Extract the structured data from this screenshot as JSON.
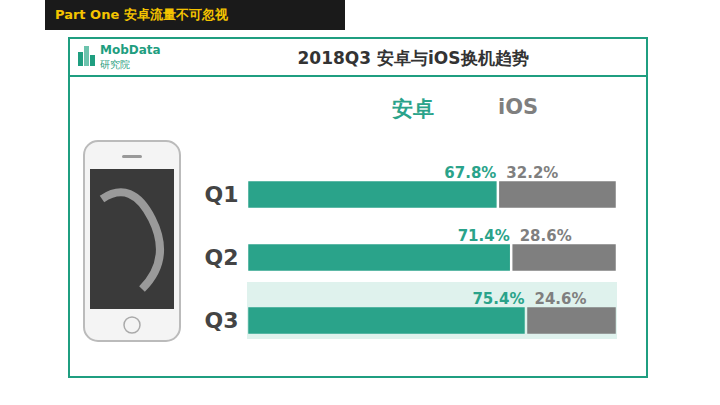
{
  "header": "Part One 安卓流量不可忽视",
  "chart_data": {
    "type": "bar",
    "title": "2018Q3 安卓与iOS换机趋势",
    "logo": {
      "name": "MobData",
      "subname": "研究院"
    },
    "orientation": "horizontal",
    "stacked": true,
    "categories": [
      "Q1",
      "Q2",
      "Q3"
    ],
    "series": [
      {
        "name": "安卓",
        "color": "#2aa38a",
        "values": [
          67.8,
          71.4,
          75.4
        ],
        "value_labels": [
          "67.8%",
          "71.4%",
          "75.4%"
        ]
      },
      {
        "name": "iOS",
        "color": "#7f7f7f",
        "values": [
          32.2,
          28.6,
          24.6
        ],
        "value_labels": [
          "32.2%",
          "28.6%",
          "24.6%"
        ]
      }
    ],
    "xlim": [
      0,
      100
    ],
    "data_labels": true,
    "tick_labels": "y",
    "legend": "top"
  }
}
